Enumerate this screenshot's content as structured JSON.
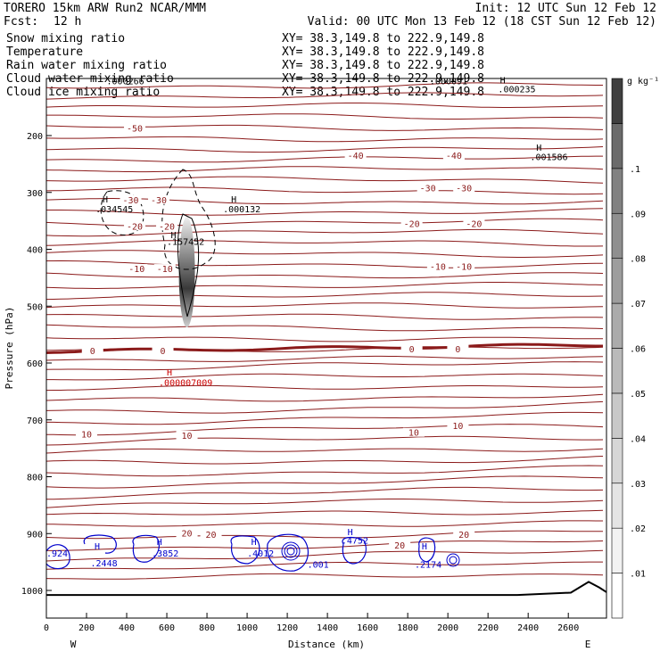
{
  "header": {
    "left_title": "TORERO  15km ARW   Run2    NCAR/MMM",
    "init": "Init: 12 UTC Sun 12 Feb 12",
    "fcst_label": "Fcst:",
    "fcst_value": "12 h",
    "valid": "Valid: 00 UTC Mon 13 Feb 12 (18 CST Sun 12 Feb 12)"
  },
  "legend": [
    {
      "name": "Snow mixing ratio",
      "xy": "XY=  38.3,149.8 to 222.9,149.8",
      "name_color": "#000000",
      "xy_color": "#000000"
    },
    {
      "name": "Temperature",
      "xy": "XY=  38.3,149.8 to 222.9,149.8",
      "name_color": "#b22222",
      "xy_color": "#b22222"
    },
    {
      "name": "Rain water mixing ratio",
      "xy": "XY=  38.3,149.8 to 222.9,149.8",
      "name_color": "#e00000",
      "xy_color": "#e00000"
    },
    {
      "name": "Cloud water mixing ratio",
      "xy": "XY=  38.3,149.8 to 222.9,149.8",
      "name_color": "#0000c8",
      "xy_color": "#0000c8"
    },
    {
      "name": "Cloud ice mixing ratio",
      "xy": "XY=  38.3,149.8 to 222.9,149.8",
      "name_color": "#000000",
      "xy_color": "#000000"
    }
  ],
  "colors": {
    "temperature": "#8b1a1a",
    "rain": "#cc0000",
    "cloud_water": "#0000cc",
    "cloud_ice": "#000000",
    "terrain": "#000000"
  },
  "chart_data": {
    "type": "contour-cross-section",
    "xlabel": "Distance (km)",
    "ylabel": "Pressure (hPa)",
    "xlim": [
      0,
      2780
    ],
    "ylim": [
      1050,
      100
    ],
    "x_ticks": [
      0,
      200,
      400,
      600,
      800,
      1000,
      1200,
      1400,
      1600,
      1800,
      2000,
      2200,
      2400,
      2600
    ],
    "y_ticks": [
      200,
      300,
      400,
      500,
      600,
      700,
      800,
      900,
      1000
    ],
    "x_end_labels": {
      "left": "W",
      "right": "E"
    },
    "colorbar": {
      "unit": "g kg⁻¹",
      "ticks": [
        ".01",
        ".02",
        ".03",
        ".04",
        ".05",
        ".06",
        ".07",
        ".08",
        ".09",
        ".1"
      ],
      "shades": [
        "#ffffff",
        "#f2f2f2",
        "#e4e4e4",
        "#d6d6d6",
        "#c8c8c8",
        "#bababa",
        "#ababab",
        "#9d9d9d",
        "#8f8f8f",
        "#818181",
        "#6b6b6b",
        "#404040"
      ]
    },
    "temperature_contours": [
      {
        "value": -50,
        "pressure": 190
      },
      {
        "value": -40,
        "pressure": 238
      },
      {
        "value": -30,
        "pressure": 297
      },
      {
        "value": -20,
        "pressure": 355
      },
      {
        "value": -10,
        "pressure": 430
      },
      {
        "value": 0,
        "pressure": 567,
        "bold": true
      },
      {
        "value": 10,
        "pressure": 700
      },
      {
        "value": 20,
        "pressure": 905
      }
    ],
    "contour_labels": [
      {
        "text": "-50",
        "x": 440,
        "p": 190
      },
      {
        "text": "-40",
        "x": 1540,
        "p": 238
      },
      {
        "text": "-40",
        "x": 2030,
        "p": 238
      },
      {
        "text": "-30",
        "x": 420,
        "p": 316
      },
      {
        "text": "-30",
        "x": 560,
        "p": 316
      },
      {
        "text": "-30",
        "x": 1900,
        "p": 295
      },
      {
        "text": "-30",
        "x": 2080,
        "p": 295
      },
      {
        "text": "-20",
        "x": 440,
        "p": 362
      },
      {
        "text": "-20",
        "x": 600,
        "p": 362
      },
      {
        "text": "-20",
        "x": 1820,
        "p": 358
      },
      {
        "text": "-20",
        "x": 2130,
        "p": 358
      },
      {
        "text": "-10",
        "x": 450,
        "p": 437
      },
      {
        "text": "-10",
        "x": 590,
        "p": 437
      },
      {
        "text": "-10",
        "x": 1950,
        "p": 433
      },
      {
        "text": "-10",
        "x": 2080,
        "p": 433
      },
      {
        "text": "0",
        "x": 230,
        "p": 581
      },
      {
        "text": "0",
        "x": 580,
        "p": 581
      },
      {
        "text": "0",
        "x": 1820,
        "p": 578
      },
      {
        "text": "0",
        "x": 2050,
        "p": 578
      },
      {
        "text": "10",
        "x": 200,
        "p": 728
      },
      {
        "text": "10",
        "x": 700,
        "p": 730
      },
      {
        "text": "10",
        "x": 1830,
        "p": 725
      },
      {
        "text": "10",
        "x": 2050,
        "p": 713
      },
      {
        "text": "20",
        "x": 700,
        "p": 902
      },
      {
        "text": "20",
        "x": 820,
        "p": 904
      },
      {
        "text": "20",
        "x": 1760,
        "p": 923
      },
      {
        "text": "20",
        "x": 2080,
        "p": 904
      }
    ],
    "annotations": [
      {
        "text": "H",
        "x": 280,
        "p": 318,
        "color": "#000000"
      },
      {
        "text": ".034545",
        "x": 245,
        "p": 335,
        "color": "#000000"
      },
      {
        "text": "H",
        "x": 920,
        "p": 318,
        "color": "#000000"
      },
      {
        "text": ".000132",
        "x": 880,
        "p": 335,
        "color": "#000000"
      },
      {
        "text": "H",
        "x": 620,
        "p": 380,
        "color": "#000000"
      },
      {
        "text": ".157452",
        "x": 600,
        "p": 392,
        "color": "#000000"
      },
      {
        "text": ".000266",
        "x": 300,
        "p": 110,
        "color": "#000000"
      },
      {
        "text": ".000091",
        "x": 1910,
        "p": 110,
        "color": "#000000"
      },
      {
        "text": "H",
        "x": 2260,
        "p": 108,
        "color": "#000000"
      },
      {
        "text": ".000235",
        "x": 2250,
        "p": 124,
        "color": "#000000"
      },
      {
        "text": "H",
        "x": 2440,
        "p": 227,
        "color": "#000000"
      },
      {
        "text": ".001586",
        "x": 2410,
        "p": 243,
        "color": "#000000"
      },
      {
        "text": "H",
        "x": 600,
        "p": 622,
        "color": "#cc0000"
      },
      {
        "text": ".000007009",
        "x": 560,
        "p": 640,
        "color": "#cc0000"
      },
      {
        "text": ".924",
        "x": 0,
        "p": 940,
        "color": "#0000cc"
      },
      {
        "text": "H",
        "x": 240,
        "p": 928,
        "color": "#0000cc"
      },
      {
        "text": ".2448",
        "x": 220,
        "p": 958,
        "color": "#0000cc"
      },
      {
        "text": "H",
        "x": 550,
        "p": 920,
        "color": "#0000cc"
      },
      {
        "text": ".3852",
        "x": 525,
        "p": 940,
        "color": "#0000cc"
      },
      {
        "text": "H",
        "x": 1020,
        "p": 920,
        "color": "#0000cc"
      },
      {
        "text": ".4012",
        "x": 1000,
        "p": 940,
        "color": "#0000cc"
      },
      {
        "text": ".001",
        "x": 1300,
        "p": 960,
        "color": "#0000cc"
      },
      {
        "text": "H",
        "x": 1500,
        "p": 903,
        "color": "#0000cc"
      },
      {
        "text": ".4752",
        "x": 1470,
        "p": 918,
        "color": "#0000cc"
      },
      {
        "text": "H",
        "x": 1870,
        "p": 928,
        "color": "#0000cc"
      },
      {
        "text": ".2174",
        "x": 1835,
        "p": 960,
        "color": "#0000cc"
      }
    ]
  }
}
